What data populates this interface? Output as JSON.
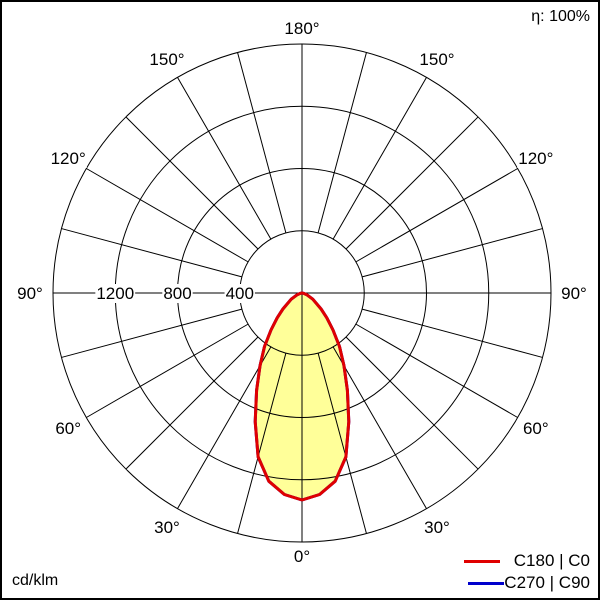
{
  "chart_data": {
    "type": "polar",
    "efficiency_label": "η: 100%",
    "unit_label": "cd/klm",
    "radial_ticks": [
      400,
      800,
      1200
    ],
    "radial_max": 1600,
    "angle_labels": [
      "0°",
      "30°",
      "60°",
      "90°",
      "120°",
      "150°",
      "180°"
    ],
    "angle_label_values": [
      0,
      30,
      60,
      90,
      120,
      150,
      180
    ],
    "grid_spoke_step_deg": 15,
    "fill_color": "#ffff99",
    "series": [
      {
        "name": "C180 | C0",
        "color": "#e00000",
        "angles": [
          0,
          5,
          10,
          15,
          20,
          25,
          30,
          35,
          40,
          45,
          50,
          60,
          70,
          80,
          90
        ],
        "values": [
          1330,
          1300,
          1228,
          1090,
          880,
          690,
          540,
          420,
          310,
          225,
          160,
          80,
          35,
          10,
          0
        ]
      },
      {
        "name": "C270 | C90",
        "color": "#0000cc",
        "angles": [
          0,
          5,
          10,
          15,
          20,
          25,
          30,
          35,
          40,
          45,
          50,
          60,
          70,
          80,
          90
        ],
        "values": [
          1330,
          1300,
          1228,
          1090,
          880,
          690,
          540,
          420,
          310,
          225,
          160,
          80,
          35,
          10,
          0
        ]
      }
    ]
  }
}
